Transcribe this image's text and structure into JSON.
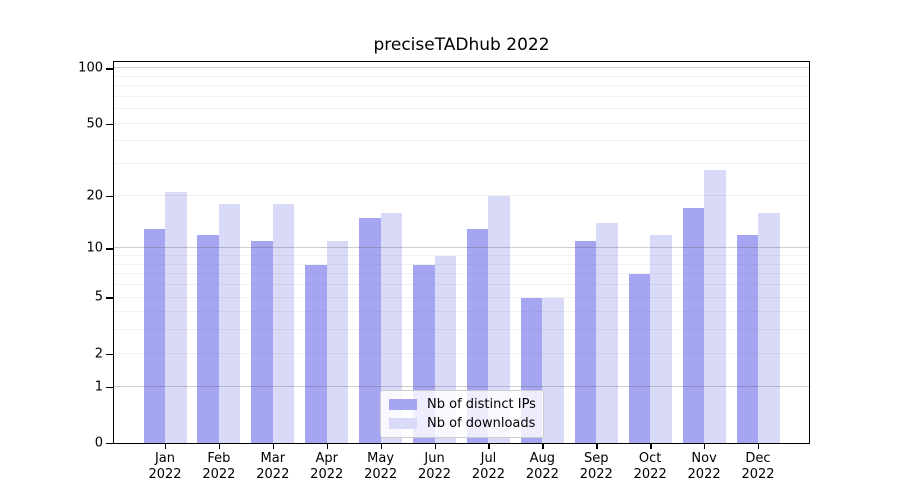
{
  "chart_data": {
    "type": "bar",
    "title": "preciseTADhub 2022",
    "categories": [
      "Jan",
      "Feb",
      "Mar",
      "Apr",
      "May",
      "Jun",
      "Jul",
      "Aug",
      "Sep",
      "Oct",
      "Nov",
      "Dec"
    ],
    "category_year": "2022",
    "series": [
      {
        "name": "Nb of distinct IPs",
        "color": "#a5a5f2",
        "values": [
          13,
          12,
          11,
          8,
          15,
          8,
          13,
          5,
          11,
          7,
          17,
          12
        ]
      },
      {
        "name": "Nb of downloads",
        "color": "#d9d9f8",
        "values": [
          21,
          18,
          18,
          11,
          16,
          9,
          20,
          5,
          14,
          12,
          28,
          16
        ]
      }
    ],
    "xlabel": "",
    "ylabel": "",
    "yscale": "log1p",
    "ylim": [
      0,
      108
    ],
    "yticks": [
      0,
      1,
      2,
      5,
      10,
      20,
      50,
      100
    ],
    "major_gridlines": [
      1,
      10,
      100
    ],
    "minor_gridlines": [
      2,
      3,
      4,
      5,
      6,
      7,
      8,
      9,
      20,
      30,
      40,
      50,
      60,
      70,
      80,
      90
    ],
    "grid": true,
    "legend_position": "lower center"
  }
}
